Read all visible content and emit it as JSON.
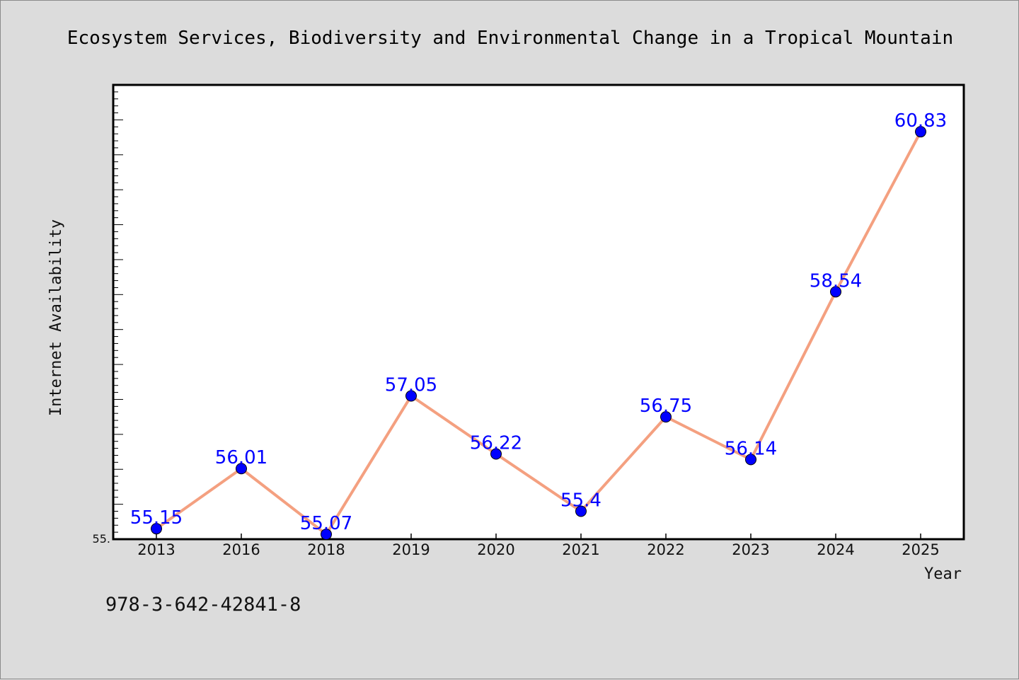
{
  "colors": {
    "background": "#dcdcdc",
    "plot_background": "#ffffff",
    "line": "#f4a080",
    "marker": "#0000ff",
    "data_label": "#0000ff"
  },
  "footer": {
    "text": "978-3-642-42841-8"
  },
  "chart_data": {
    "type": "line",
    "title": "Ecosystem Services, Biodiversity and Environmental Change in a Tropical Mountain",
    "xlabel": "Year",
    "ylabel": "Internet Availability",
    "categories": [
      "2013",
      "2016",
      "2018",
      "2019",
      "2020",
      "2021",
      "2022",
      "2023",
      "2024",
      "2025"
    ],
    "series": [
      {
        "values": [
          55.15,
          56.01,
          55.07,
          57.05,
          56.22,
          55.4,
          56.75,
          56.14,
          58.54,
          60.83
        ],
        "labels": [
          "55.15",
          "56.01",
          "55.07",
          "57.05",
          "56.22",
          "55.4",
          "56.75",
          "56.14",
          "58.54",
          "60.83"
        ]
      }
    ],
    "ylim": [
      55.0,
      61.5
    ],
    "y_tick_labels": [
      "55."
    ],
    "grid": false,
    "legend": "none"
  }
}
